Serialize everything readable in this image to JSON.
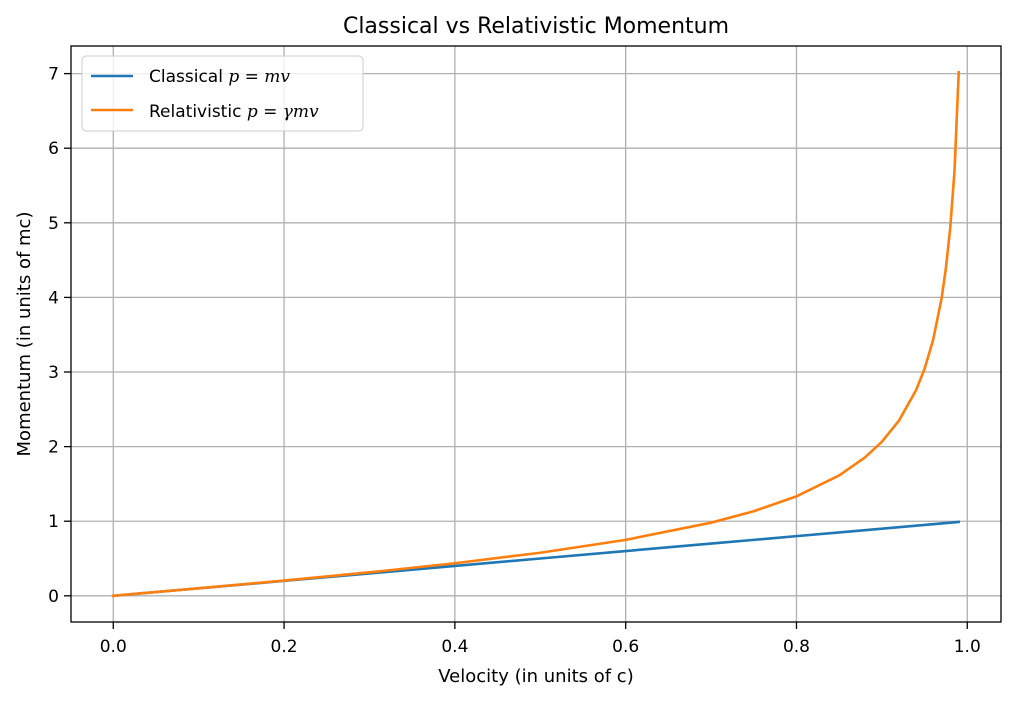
{
  "chart_data": {
    "type": "line",
    "title": "Classical vs Relativistic Momentum",
    "xlabel": "Velocity (in units of c)",
    "ylabel": "Momentum (in units of mc)",
    "xlim": [
      -0.0495,
      1.0395
    ],
    "ylim": [
      -0.351,
      7.37
    ],
    "xticks": [
      0.0,
      0.2,
      0.4,
      0.6,
      0.8,
      1.0
    ],
    "xtick_labels": [
      "0.0",
      "0.2",
      "0.4",
      "0.6",
      "0.8",
      "1.0"
    ],
    "yticks": [
      0,
      1,
      2,
      3,
      4,
      5,
      6,
      7
    ],
    "ytick_labels": [
      "0",
      "1",
      "2",
      "3",
      "4",
      "5",
      "6",
      "7"
    ],
    "grid": true,
    "legend_position": "top-left",
    "x": [
      0.0,
      0.1,
      0.2,
      0.3,
      0.4,
      0.5,
      0.6,
      0.7,
      0.75,
      0.8,
      0.85,
      0.88,
      0.9,
      0.92,
      0.94,
      0.95,
      0.96,
      0.97,
      0.975,
      0.98,
      0.985,
      0.99
    ],
    "series": [
      {
        "name": "Classical",
        "legend_text": "Classical ",
        "legend_math": "p = mv",
        "color": "#1f77b4",
        "values": [
          0.0,
          0.1,
          0.2,
          0.3,
          0.4,
          0.5,
          0.6,
          0.7,
          0.75,
          0.8,
          0.85,
          0.88,
          0.9,
          0.92,
          0.94,
          0.95,
          0.96,
          0.97,
          0.975,
          0.98,
          0.985,
          0.99
        ]
      },
      {
        "name": "Relativistic",
        "legend_text": "Relativistic ",
        "legend_math": "p = γmv",
        "color": "#ff7f0e",
        "values": [
          0.0,
          0.1005,
          0.2041,
          0.3145,
          0.4364,
          0.5774,
          0.75,
          0.9802,
          1.1339,
          1.3333,
          1.6136,
          1.8533,
          2.0647,
          2.3474,
          2.7553,
          3.0424,
          3.4286,
          3.9901,
          4.3928,
          4.9247,
          5.6848,
          7.0179
        ]
      }
    ]
  }
}
